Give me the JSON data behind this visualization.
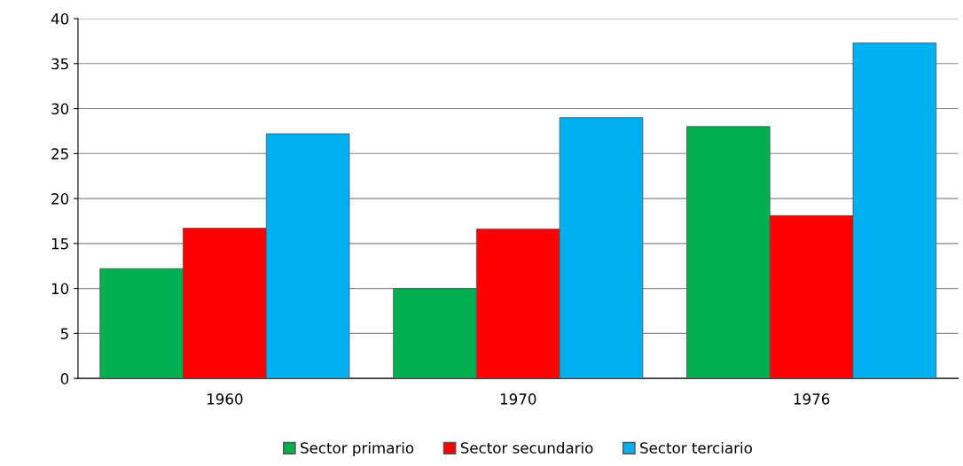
{
  "chart_data": {
    "type": "bar",
    "categories": [
      "1960",
      "1970",
      "1976"
    ],
    "series": [
      {
        "name": "Sector primario",
        "color": "#00b050",
        "values": [
          12.2,
          10.0,
          28.0
        ]
      },
      {
        "name": "Sector secundario",
        "color": "#ff0000",
        "values": [
          16.7,
          16.6,
          18.1
        ]
      },
      {
        "name": "Sector terciario",
        "color": "#00b0f0",
        "values": [
          27.2,
          29.0,
          37.3
        ]
      }
    ],
    "ylim": [
      0,
      40
    ],
    "yticks": [
      0,
      5,
      10,
      15,
      20,
      25,
      30,
      35,
      40
    ],
    "grid": "y",
    "legend": "bottom"
  }
}
